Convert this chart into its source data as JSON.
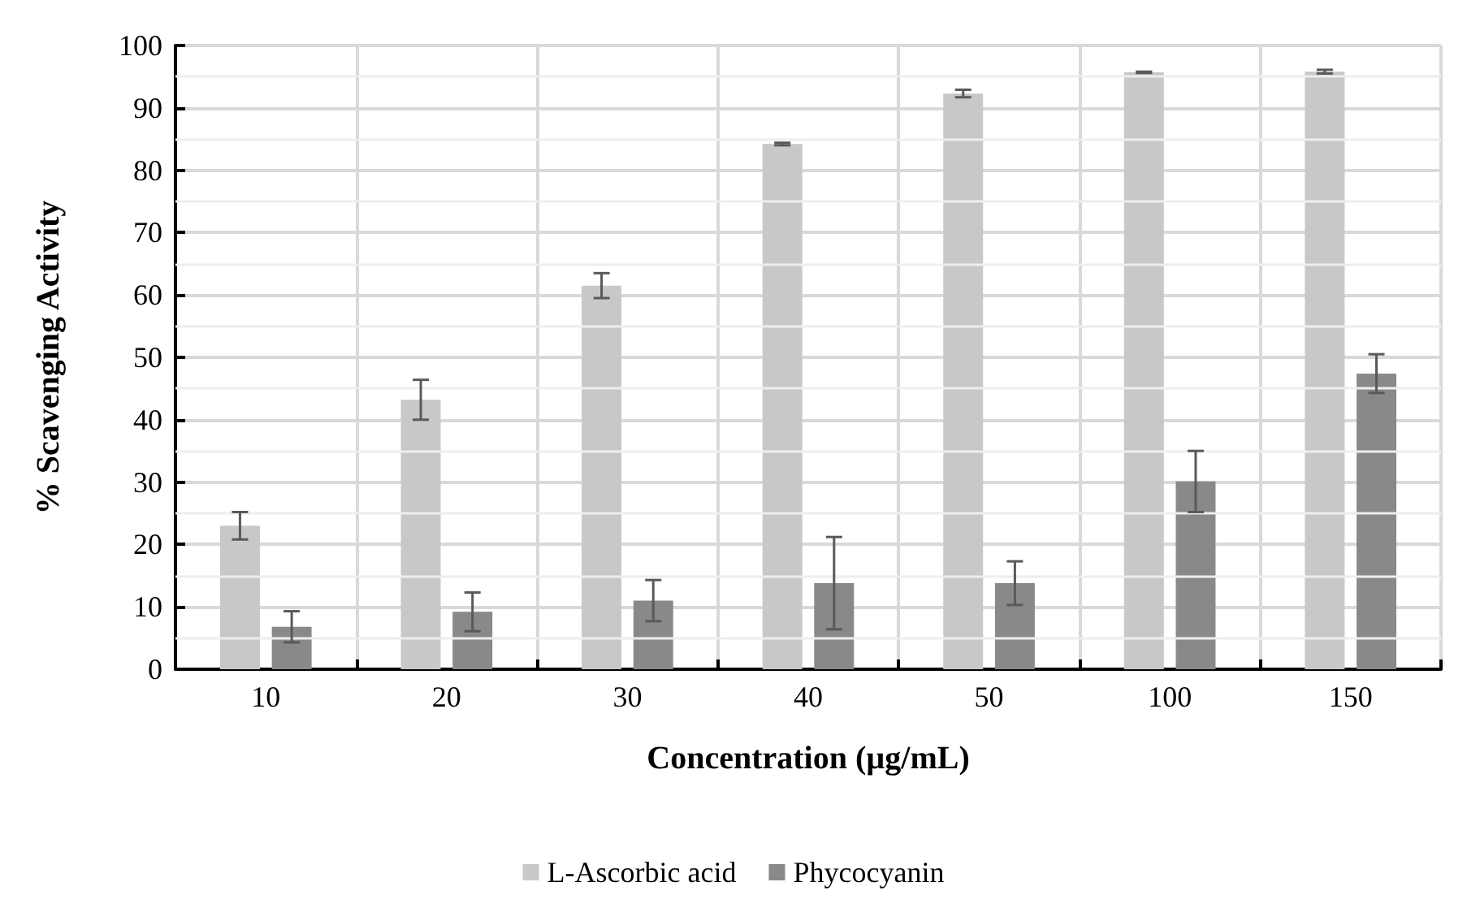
{
  "chart_data": {
    "type": "bar",
    "xlabel": "Concentration (µg/mL)",
    "ylabel": "% Scavenging Activity",
    "categories": [
      "10",
      "20",
      "30",
      "40",
      "50",
      "100",
      "150"
    ],
    "series": [
      {
        "name": "L-Ascorbic acid",
        "color": "#c8c8c8",
        "values": [
          23.0,
          43.2,
          61.5,
          84.2,
          92.3,
          95.7,
          95.8
        ],
        "errors": [
          2.2,
          3.2,
          2.0,
          0.2,
          0.6,
          0.1,
          0.3
        ]
      },
      {
        "name": "Phycocyanin",
        "color": "#898989",
        "values": [
          6.8,
          9.2,
          11.0,
          13.8,
          13.8,
          30.1,
          47.4
        ],
        "errors": [
          2.5,
          3.1,
          3.3,
          7.4,
          3.5,
          4.9,
          3.1
        ]
      }
    ],
    "ylim": [
      0,
      100
    ],
    "yticks": [
      0,
      10,
      20,
      30,
      40,
      50,
      60,
      70,
      80,
      90,
      100
    ],
    "grid": true,
    "legend": "bottom"
  }
}
